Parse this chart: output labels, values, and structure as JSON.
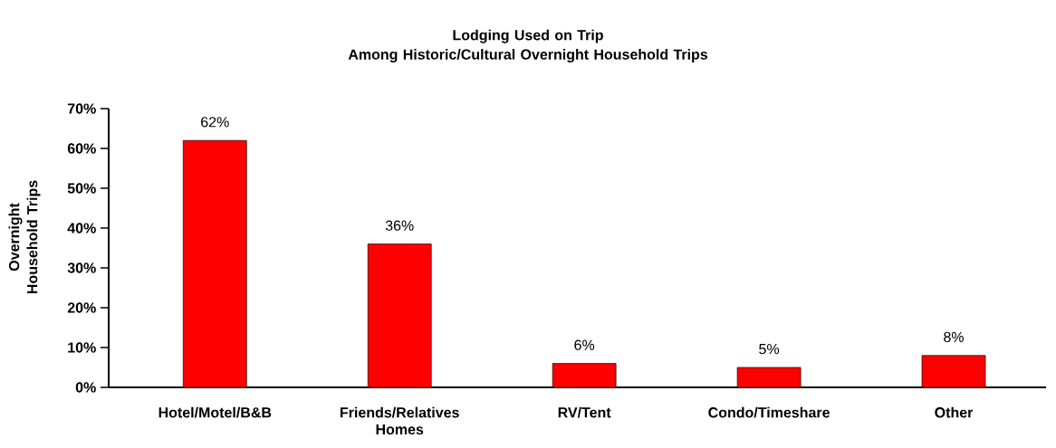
{
  "chart_data": {
    "type": "bar",
    "title": "Lodging Used on Trip\nAmong Historic/Cultural Overnight Household Trips",
    "ylabel": "Overnight\nHousehold Trips",
    "categories": [
      "Hotel/Motel/B&B",
      "Friends/Relatives Homes",
      "RV/Tent",
      "Condo/Timeshare",
      "Other"
    ],
    "values": [
      62,
      36,
      6,
      5,
      8
    ],
    "value_labels": [
      "62%",
      "36%",
      "6%",
      "5%",
      "8%"
    ],
    "color": "#ff0000",
    "ylim": [
      0,
      70
    ],
    "yticks": [
      {
        "value": 0,
        "label": "0%"
      },
      {
        "value": 10,
        "label": "10%"
      },
      {
        "value": 20,
        "label": "20%"
      },
      {
        "value": 30,
        "label": "30%"
      },
      {
        "value": 40,
        "label": "40%"
      },
      {
        "value": 50,
        "label": "50%"
      },
      {
        "value": 60,
        "label": "60%"
      },
      {
        "value": 70,
        "label": "70%"
      }
    ]
  }
}
